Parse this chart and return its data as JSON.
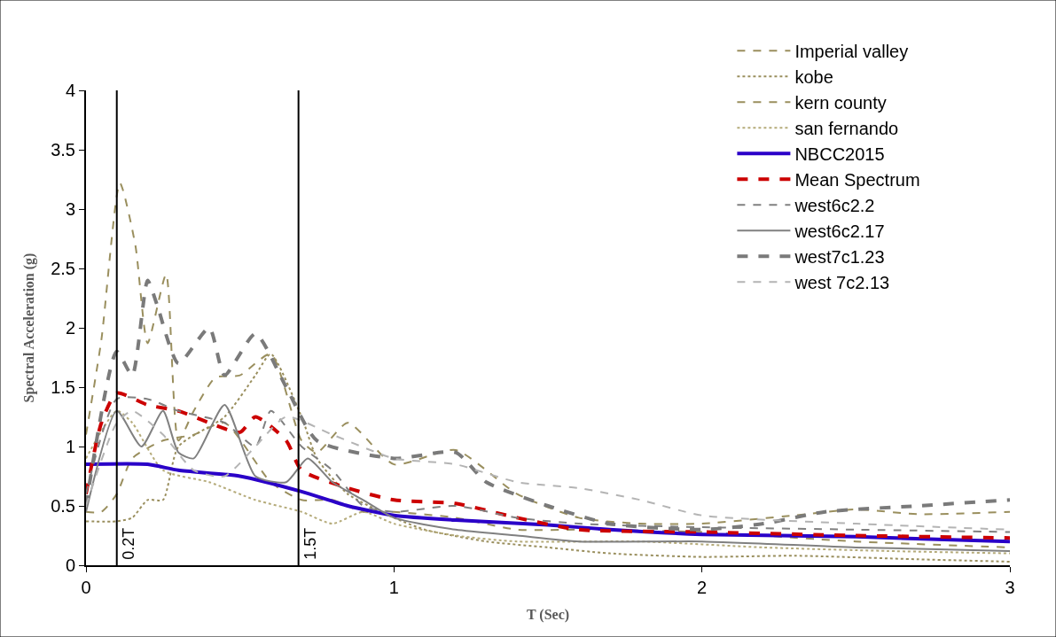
{
  "chart_data": {
    "type": "line",
    "xlabel": "T (Sec)",
    "ylabel": "Spectral Acceleration (g)",
    "xlim": [
      0,
      3
    ],
    "xticks": [
      0,
      1,
      2,
      3
    ],
    "ylim": [
      0,
      4
    ],
    "yticks": [
      0,
      0.5,
      1,
      1.5,
      2,
      2.5,
      3,
      3.5,
      4
    ],
    "grid": false,
    "legend": "top right",
    "marker": "none",
    "ref_lines": [
      {
        "axis": "x",
        "value": 0.1,
        "label": "0.2T",
        "color": "#000000",
        "line_style": "solid"
      },
      {
        "axis": "x",
        "value": 0.69,
        "label": "1.5T",
        "color": "#000000",
        "line_style": "solid"
      }
    ],
    "series": [
      {
        "name": "Imperial valley",
        "color": "#9a8f5e",
        "line_style": "dashed",
        "x": [
          0,
          0.05,
          0.11,
          0.16,
          0.2,
          0.26,
          0.3,
          0.35,
          0.42,
          0.5,
          0.6,
          0.7,
          0.75,
          0.85,
          1.0,
          1.2,
          1.4,
          1.6,
          1.8,
          2.0,
          2.3,
          2.5,
          2.7,
          3.0
        ],
        "values": [
          1.1,
          1.9,
          3.22,
          2.7,
          1.87,
          2.45,
          1.05,
          1.3,
          1.58,
          1.6,
          1.78,
          1.05,
          0.95,
          1.2,
          0.85,
          0.97,
          0.6,
          0.4,
          0.35,
          0.35,
          0.42,
          0.47,
          0.43,
          0.45
        ]
      },
      {
        "name": "kobe",
        "color": "#9a8f5e",
        "line_style": "dotted",
        "x": [
          0,
          0.1,
          0.15,
          0.2,
          0.25,
          0.3,
          0.45,
          0.55,
          0.6,
          0.7,
          0.75,
          0.85,
          1.0,
          1.1,
          1.3,
          1.5,
          1.7,
          2.0,
          2.3,
          2.7,
          3.0
        ],
        "values": [
          0.37,
          0.37,
          0.4,
          0.55,
          0.55,
          1.0,
          1.25,
          1.6,
          1.78,
          1.25,
          0.9,
          0.6,
          0.4,
          0.3,
          0.2,
          0.15,
          0.1,
          0.07,
          0.08,
          0.05,
          0.03
        ]
      },
      {
        "name": "kern county",
        "color": "#9a8f5e",
        "line_style": "dashed",
        "x": [
          0,
          0.05,
          0.1,
          0.15,
          0.25,
          0.35,
          0.45,
          0.6,
          0.7,
          0.8,
          0.9,
          1.0,
          1.2,
          1.4,
          1.6,
          2.0,
          2.5,
          3.0
        ],
        "values": [
          0.45,
          0.45,
          0.6,
          0.9,
          1.05,
          1.1,
          1.2,
          0.7,
          0.55,
          0.55,
          0.45,
          0.45,
          0.4,
          0.3,
          0.3,
          0.28,
          0.2,
          0.15
        ]
      },
      {
        "name": "san fernando",
        "color": "#b5ab7a",
        "line_style": "dotted",
        "x": [
          0,
          0.1,
          0.15,
          0.25,
          0.4,
          0.55,
          0.7,
          0.8,
          0.9,
          1.0,
          1.2,
          1.4,
          1.8,
          2.2,
          2.6,
          3.0
        ],
        "values": [
          0.9,
          1.3,
          1.2,
          0.8,
          0.7,
          0.55,
          0.45,
          0.35,
          0.45,
          0.35,
          0.25,
          0.2,
          0.2,
          0.15,
          0.12,
          0.1
        ]
      },
      {
        "name": "NBCC2015",
        "color": "#2a00c8",
        "line_style": "solid",
        "x": [
          0,
          0.2,
          0.3,
          0.5,
          0.7,
          0.85,
          1.0,
          1.2,
          1.5,
          1.7,
          2.0,
          2.5,
          3.0
        ],
        "values": [
          0.85,
          0.85,
          0.8,
          0.75,
          0.62,
          0.5,
          0.42,
          0.38,
          0.34,
          0.3,
          0.26,
          0.24,
          0.2
        ]
      },
      {
        "name": "Mean Spectrum",
        "color": "#cc0000",
        "line_style": "dashed",
        "x": [
          0,
          0.05,
          0.1,
          0.2,
          0.3,
          0.4,
          0.5,
          0.55,
          0.65,
          0.7,
          0.85,
          1.0,
          1.2,
          1.4,
          1.6,
          2.0,
          2.5,
          3.0
        ],
        "values": [
          0.6,
          1.2,
          1.45,
          1.35,
          1.3,
          1.2,
          1.12,
          1.25,
          1.05,
          0.8,
          0.65,
          0.55,
          0.52,
          0.4,
          0.3,
          0.28,
          0.25,
          0.23
        ]
      },
      {
        "name": "west6c2.2",
        "color": "#808080",
        "line_style": "dashed",
        "x": [
          0,
          0.1,
          0.2,
          0.3,
          0.45,
          0.55,
          0.6,
          0.7,
          0.8,
          0.9,
          1.0,
          1.2,
          1.4,
          1.6,
          2.0,
          2.5,
          3.0
        ],
        "values": [
          0.6,
          1.4,
          1.4,
          1.3,
          1.2,
          1.0,
          1.3,
          1.0,
          0.8,
          0.5,
          0.45,
          0.5,
          0.4,
          0.35,
          0.32,
          0.3,
          0.28
        ]
      },
      {
        "name": "west6c2.17",
        "color": "#808080",
        "line_style": "solid",
        "x": [
          0,
          0.1,
          0.18,
          0.25,
          0.3,
          0.35,
          0.45,
          0.55,
          0.65,
          0.72,
          0.8,
          0.9,
          1.0,
          1.2,
          1.4,
          1.6,
          2.0,
          2.5,
          3.0
        ],
        "values": [
          0.45,
          1.3,
          1.0,
          1.3,
          0.95,
          0.9,
          1.35,
          0.75,
          0.7,
          0.9,
          0.7,
          0.55,
          0.4,
          0.3,
          0.25,
          0.2,
          0.2,
          0.15,
          0.12
        ]
      },
      {
        "name": "west7c1.23",
        "color": "#7a7a7a",
        "line_style": "dashed",
        "x": [
          0,
          0.1,
          0.15,
          0.2,
          0.23,
          0.3,
          0.4,
          0.45,
          0.55,
          0.65,
          0.75,
          1.0,
          1.2,
          1.3,
          1.5,
          1.7,
          2.0,
          2.2,
          2.4,
          2.7,
          3.0
        ],
        "values": [
          0.5,
          1.8,
          1.6,
          2.4,
          2.2,
          1.7,
          2.0,
          1.6,
          1.95,
          1.5,
          1.05,
          0.9,
          0.95,
          0.7,
          0.5,
          0.35,
          0.3,
          0.35,
          0.45,
          0.5,
          0.55
        ]
      },
      {
        "name": "west 7c2.13",
        "color": "#b4b4b4",
        "line_style": "dashed",
        "x": [
          0,
          0.1,
          0.15,
          0.25,
          0.35,
          0.45,
          0.55,
          0.65,
          0.8,
          1.0,
          1.2,
          1.4,
          1.6,
          1.8,
          2.0,
          2.5,
          3.0
        ],
        "values": [
          0.5,
          1.2,
          1.3,
          1.1,
          0.8,
          0.75,
          1.0,
          1.25,
          1.1,
          0.9,
          0.85,
          0.7,
          0.65,
          0.55,
          0.42,
          0.35,
          0.3
        ]
      }
    ]
  }
}
